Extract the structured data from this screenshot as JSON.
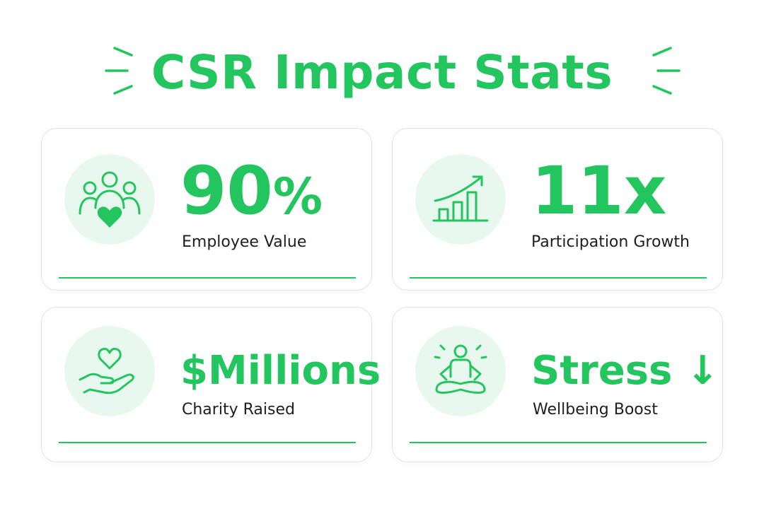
{
  "header": {
    "title": "CSR Impact Stats"
  },
  "colors": {
    "accent": "#22c55e",
    "icon_bg": "#e9f8ee",
    "label": "#1e1e1e",
    "card_border": "#e4e4e4"
  },
  "cards": [
    {
      "icon": "team-heart-icon",
      "value": "90",
      "unit": "%",
      "label": "Employee Value"
    },
    {
      "icon": "growth-chart-icon",
      "value": "11x",
      "label": "Participation Growth"
    },
    {
      "icon": "hand-heart-icon",
      "value": "$Millions",
      "label": "Charity Raised"
    },
    {
      "icon": "meditation-icon",
      "value": "Stress ↓",
      "label": "Wellbeing Boost"
    }
  ]
}
